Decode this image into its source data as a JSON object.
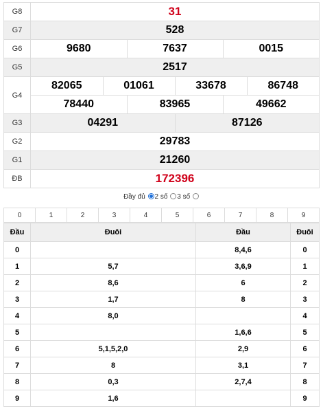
{
  "prizes": {
    "g8": {
      "label": "G8",
      "value": "31"
    },
    "g7": {
      "label": "G7",
      "value": "528"
    },
    "g6": {
      "label": "G6",
      "values": [
        "9680",
        "7637",
        "0015"
      ]
    },
    "g5": {
      "label": "G5",
      "value": "2517"
    },
    "g4": {
      "label": "G4",
      "row1": [
        "82065",
        "01061",
        "33678",
        "86748"
      ],
      "row2": [
        "78440",
        "83965",
        "49662"
      ]
    },
    "g3": {
      "label": "G3",
      "values": [
        "04291",
        "87126"
      ]
    },
    "g2": {
      "label": "G2",
      "value": "29783"
    },
    "g1": {
      "label": "G1",
      "value": "21260"
    },
    "db": {
      "label": "ĐB",
      "value": "172396"
    }
  },
  "options": {
    "full": "Đầy đủ",
    "two": "2 số",
    "three": "3 số",
    "selected": "2 số"
  },
  "digit_tabs": [
    "0",
    "1",
    "2",
    "3",
    "4",
    "5",
    "6",
    "7",
    "8",
    "9"
  ],
  "loto": {
    "headers": [
      "Đầu",
      "Đuôi",
      "Đầu",
      "Đuôi"
    ],
    "rows": [
      {
        "dau": "0",
        "duoi": "",
        "dau2": "8,4,6",
        "duoi2": "0"
      },
      {
        "dau": "1",
        "duoi": "5,7",
        "dau2": "3,6,9",
        "duoi2": "1"
      },
      {
        "dau": "2",
        "duoi": "8,6",
        "dau2": "6",
        "duoi2": "2"
      },
      {
        "dau": "3",
        "duoi": "1,7",
        "dau2": "8",
        "duoi2": "3"
      },
      {
        "dau": "4",
        "duoi": "8,0",
        "dau2": "",
        "duoi2": "4"
      },
      {
        "dau": "5",
        "duoi": "",
        "dau2": "1,6,6",
        "duoi2": "5"
      },
      {
        "dau": "6",
        "duoi": "5,1,5,2,0",
        "dau2": "2,9",
        "duoi2": "6"
      },
      {
        "dau": "7",
        "duoi": "8",
        "dau2": "3,1",
        "duoi2": "7"
      },
      {
        "dau": "8",
        "duoi": "0,3",
        "dau2": "2,7,4",
        "duoi2": "8"
      },
      {
        "dau": "9",
        "duoi": "1,6",
        "dau2": "",
        "duoi2": "9"
      }
    ]
  },
  "colors": {
    "special": "#d0021b",
    "border": "#dcdcdc",
    "alt_row": "#efefef",
    "radio_active": "#1e6fd9"
  }
}
